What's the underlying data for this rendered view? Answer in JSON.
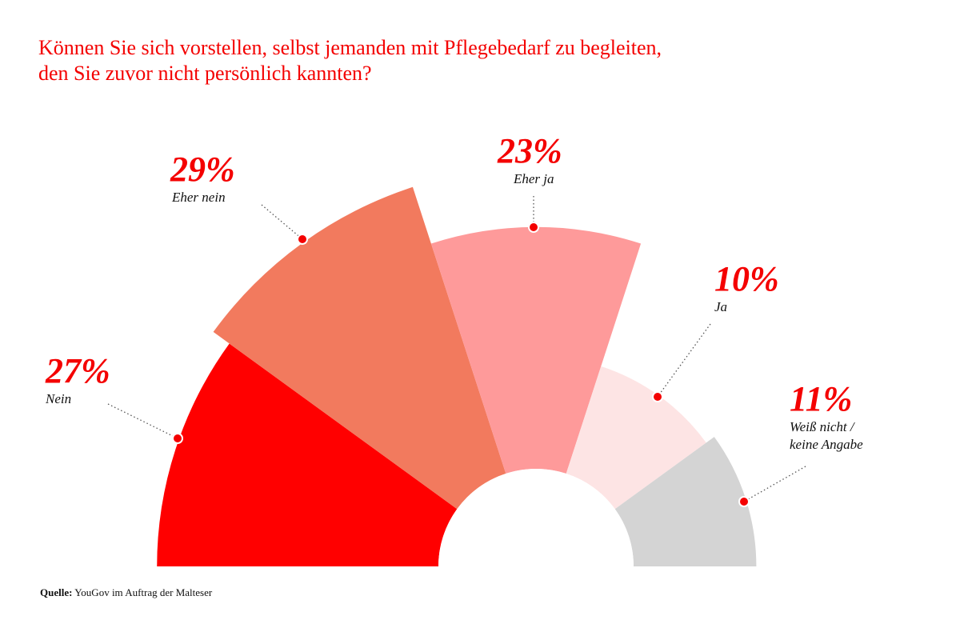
{
  "chart_data": {
    "type": "pie",
    "variant": "semicircular rose (equal angles, radius by value)",
    "title": [
      "Können Sie sich vorstellen, selbst jemanden mit Pflegebedarf zu begleiten,",
      "den Sie zuvor nicht persönlich kannten?"
    ],
    "unit": "%",
    "slices": [
      {
        "label": "Nein",
        "value": 27,
        "value_label": "27%",
        "color": "#ff0000"
      },
      {
        "label": "Eher nein",
        "value": 29,
        "value_label": "29%",
        "color": "#f27a5e"
      },
      {
        "label": "Eher ja",
        "value": 23,
        "value_label": "23%",
        "color": "#fe9a9a"
      },
      {
        "label": "Ja",
        "value": 10,
        "value_label": "10%",
        "color": "#fde4e4"
      },
      {
        "label": "Weiß nicht /",
        "label2": "keine Angabe",
        "value": 11,
        "value_label": "11%",
        "color": "#d4d4d4"
      }
    ],
    "accent_color": "#f40000"
  },
  "source": {
    "prefix": "Quelle:",
    "text": "YouGov im Auftrag der Malteser"
  }
}
